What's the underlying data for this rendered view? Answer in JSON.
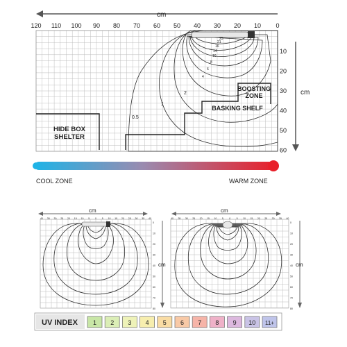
{
  "main": {
    "top_unit": "cm",
    "side_unit": "cm",
    "x_ticks": [
      "120",
      "110",
      "100",
      "90",
      "80",
      "70",
      "60",
      "50",
      "40",
      "30",
      "20",
      "10",
      "0"
    ],
    "y_ticks": [
      "10",
      "20",
      "30",
      "40",
      "50",
      "60"
    ],
    "contour_labels": [
      "0.5",
      "1",
      "2",
      "4",
      "6",
      "8",
      "10",
      "14",
      "16",
      "21",
      "25"
    ],
    "hide_box_line1": "HIDE BOX",
    "hide_box_line2": "SHELTER",
    "boosting_line1": "BOOSTING",
    "boosting_line2": "ZONE",
    "basking_shelf": "BASKING SHELF"
  },
  "gradient": {
    "cool": "COOL ZONE",
    "warm": "WARM ZONE",
    "cool_color": "#1fb3e6",
    "warm_color": "#e8202a"
  },
  "small_left": {
    "unit_top": "cm",
    "unit_side": "cm",
    "x_ticks": [
      "40",
      "35",
      "30",
      "25",
      "20",
      "15",
      "10",
      "5",
      "0",
      "5",
      "10",
      "15",
      "20",
      "25",
      "30",
      "35",
      "40"
    ],
    "y_ticks": [
      "0",
      "10",
      "20",
      "30",
      "40",
      "50",
      "60",
      "70",
      "80"
    ]
  },
  "small_right": {
    "unit_top": "cm",
    "unit_side": "cm",
    "x_ticks": [
      "40",
      "35",
      "30",
      "25",
      "20",
      "15",
      "10",
      "5",
      "0",
      "5",
      "10",
      "15",
      "20",
      "25",
      "30",
      "35",
      "40"
    ],
    "y_ticks": [
      "0",
      "10",
      "20",
      "30",
      "40",
      "50",
      "60",
      "70",
      "80"
    ]
  },
  "uv_index": {
    "title": "UV INDEX",
    "levels": [
      {
        "label": "1",
        "color": "#c8e6a6"
      },
      {
        "label": "2",
        "color": "#dbeeb6"
      },
      {
        "label": "3",
        "color": "#eef2b8"
      },
      {
        "label": "4",
        "color": "#f7eeae"
      },
      {
        "label": "5",
        "color": "#f9dca4"
      },
      {
        "label": "6",
        "color": "#f8c9a6"
      },
      {
        "label": "7",
        "color": "#f6b4a8"
      },
      {
        "label": "8",
        "color": "#efb1c8"
      },
      {
        "label": "9",
        "color": "#dcb8de"
      },
      {
        "label": "10",
        "color": "#c9c3e6"
      },
      {
        "label": "11+",
        "color": "#bfc4ea"
      }
    ]
  }
}
